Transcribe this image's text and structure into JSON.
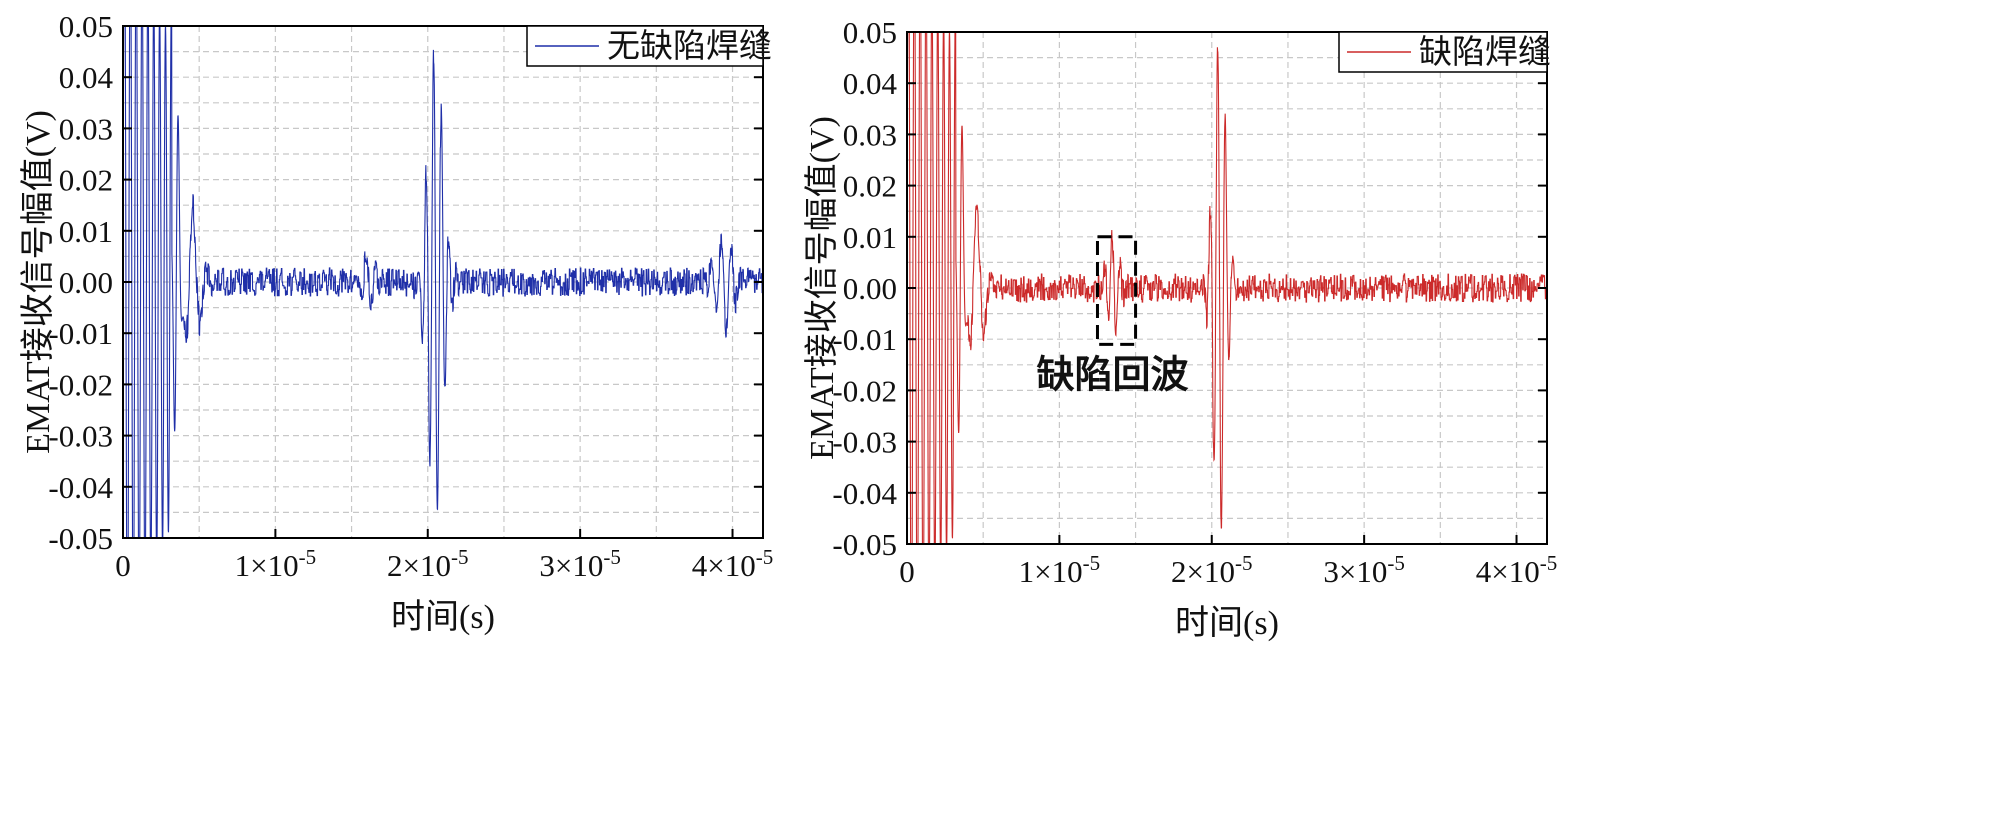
{
  "chart_data": [
    {
      "type": "line",
      "xlabel": "时间(s)",
      "ylabel": "EMAT接收信号幅值(V)",
      "xlim": [
        0,
        4.2e-05
      ],
      "ylim": [
        -0.05,
        0.05
      ],
      "xticks": [
        {
          "value": 0,
          "mant": "0",
          "exp": ""
        },
        {
          "value": 1e-05,
          "mant": "1×10",
          "exp": "-5"
        },
        {
          "value": 2e-05,
          "mant": "2×10",
          "exp": "-5"
        },
        {
          "value": 3e-05,
          "mant": "3×10",
          "exp": "-5"
        },
        {
          "value": 4e-05,
          "mant": "4×10",
          "exp": "-5"
        }
      ],
      "yticks": [
        "0.05",
        "0.04",
        "0.03",
        "0.02",
        "0.01",
        "0.00",
        "-0.01",
        "-0.02",
        "-0.03",
        "-0.04",
        "-0.05"
      ],
      "grid": true,
      "legend_position": "top-right",
      "series": [
        {
          "name": "无缺陷焊缝",
          "color": "#1f2fa8",
          "events": [
            {
              "t": 3.5e-06,
              "amp": 0.035,
              "f": 2000000.0,
              "w": 2e-07
            },
            {
              "t": 4.5e-06,
              "amp": 0.015,
              "f": 1000000.0,
              "w": 5e-07
            },
            {
              "t": 1.6e-05,
              "amp": 0.005,
              "f": 1500000.0,
              "w": 4e-07
            },
            {
              "t": 2.05e-05,
              "amp": 0.045,
              "f": 2000000.0,
              "w": 5e-07
            },
            {
              "t": 3.95e-05,
              "amp": 0.01,
              "f": 1500000.0,
              "w": 5e-07
            }
          ]
        }
      ]
    },
    {
      "type": "line",
      "xlabel": "时间(s)",
      "ylabel": "EMAT接收信号幅值(V)",
      "xlim": [
        0,
        4.2e-05
      ],
      "ylim": [
        -0.05,
        0.05
      ],
      "xticks": [
        {
          "value": 0,
          "mant": "0",
          "exp": ""
        },
        {
          "value": 1e-05,
          "mant": "1×10",
          "exp": "-5"
        },
        {
          "value": 2e-05,
          "mant": "2×10",
          "exp": "-5"
        },
        {
          "value": 3e-05,
          "mant": "3×10",
          "exp": "-5"
        },
        {
          "value": 4e-05,
          "mant": "4×10",
          "exp": "-5"
        }
      ],
      "yticks": [
        "0.05",
        "0.04",
        "0.03",
        "0.02",
        "0.01",
        "0.00",
        "-0.01",
        "-0.02",
        "-0.03",
        "-0.04",
        "-0.05"
      ],
      "grid": true,
      "legend_position": "top-right",
      "series": [
        {
          "name": "缺陷焊缝",
          "color": "#cc2a2a",
          "events": [
            {
              "t": 3.5e-06,
              "amp": 0.034,
              "f": 2000000.0,
              "w": 2e-07
            },
            {
              "t": 4.5e-06,
              "amp": 0.015,
              "f": 1000000.0,
              "w": 5e-07
            },
            {
              "t": 1.35e-05,
              "amp": 0.01,
              "f": 2000000.0,
              "w": 3.5e-07
            },
            {
              "t": 2.05e-05,
              "amp": 0.05,
              "f": 2000000.0,
              "w": 4e-07
            }
          ]
        }
      ],
      "annotation": {
        "text": "缺陷回波",
        "x_range": [
          1.25e-05,
          1.5e-05
        ],
        "y_range": [
          -0.011,
          0.01
        ]
      }
    }
  ]
}
